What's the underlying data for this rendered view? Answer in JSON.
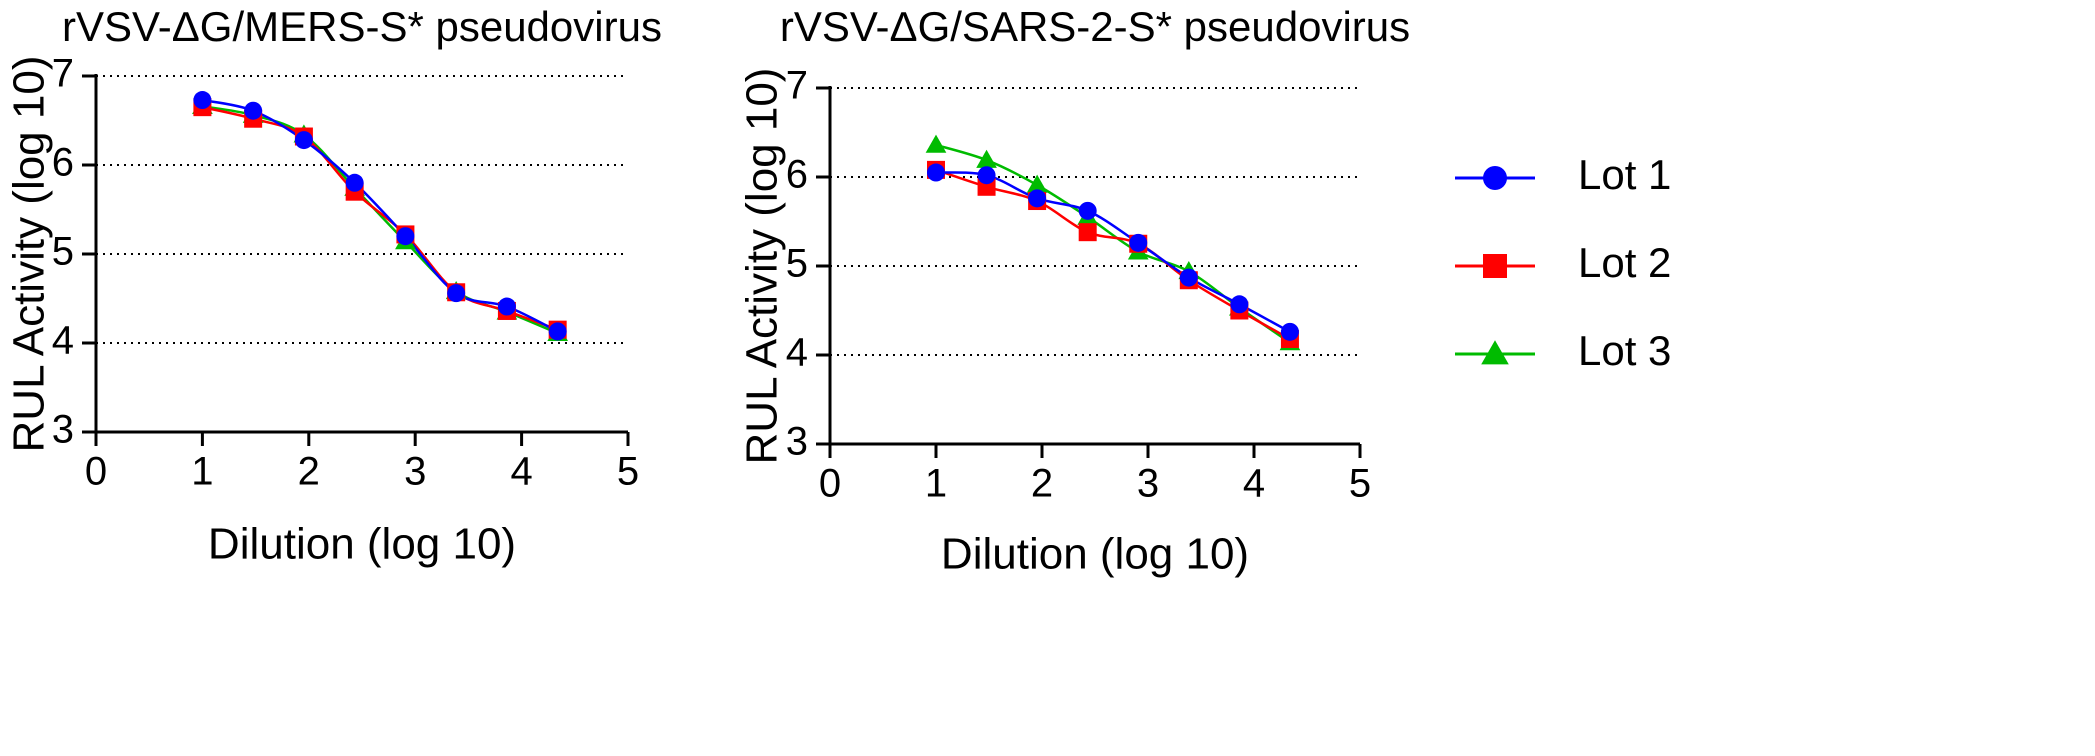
{
  "chart_data": [
    {
      "type": "line",
      "title": "rVSV-ΔG/MERS-S* pseudovirus",
      "xlabel": "Dilution (log 10)",
      "ylabel": "RUL Activity (log 10)",
      "xlim": [
        0,
        5
      ],
      "ylim": [
        3,
        7
      ],
      "xticks": [
        "0",
        "1",
        "2",
        "3",
        "4",
        "5"
      ],
      "yticks": [
        "3",
        "4",
        "5",
        "6",
        "7"
      ],
      "grid": "horizontal-dotted",
      "x": [
        1.0,
        1.477,
        1.954,
        2.431,
        2.908,
        3.385,
        3.862,
        4.339
      ],
      "series": [
        {
          "name": "Lot 1",
          "values": [
            6.73,
            6.61,
            6.28,
            5.8,
            5.2,
            4.56,
            4.41,
            4.13
          ]
        },
        {
          "name": "Lot 2",
          "values": [
            6.65,
            6.52,
            6.32,
            5.7,
            5.22,
            4.57,
            4.36,
            4.15
          ]
        },
        {
          "name": "Lot 3",
          "values": [
            6.66,
            6.56,
            6.34,
            5.74,
            5.14,
            4.58,
            4.35,
            4.11
          ]
        }
      ]
    },
    {
      "type": "line",
      "title": "rVSV-ΔG/SARS-2-S* pseudovirus",
      "xlabel": "Dilution (log 10)",
      "ylabel": "RUL Activity (log 10)",
      "xlim": [
        0,
        5
      ],
      "ylim": [
        3,
        7
      ],
      "xticks": [
        "0",
        "1",
        "2",
        "3",
        "4",
        "5"
      ],
      "yticks": [
        "3",
        "4",
        "5",
        "6",
        "7"
      ],
      "grid": "horizontal-dotted",
      "x": [
        1.0,
        1.477,
        1.954,
        2.431,
        2.908,
        3.385,
        3.862,
        4.339
      ],
      "series": [
        {
          "name": "Lot 1",
          "values": [
            6.05,
            6.02,
            5.76,
            5.62,
            5.26,
            4.87,
            4.57,
            4.26
          ]
        },
        {
          "name": "Lot 2",
          "values": [
            6.08,
            5.89,
            5.73,
            5.38,
            5.25,
            4.84,
            4.5,
            4.18
          ]
        },
        {
          "name": "Lot 3",
          "values": [
            6.36,
            6.19,
            5.91,
            5.55,
            5.16,
            4.94,
            4.53,
            4.14
          ]
        }
      ]
    }
  ],
  "legend": {
    "items": [
      {
        "label": "Lot 1",
        "color": "#0000ff",
        "marker": "circle"
      },
      {
        "label": "Lot 2",
        "color": "#ff0000",
        "marker": "square"
      },
      {
        "label": "Lot 3",
        "color": "#00bb00",
        "marker": "triangle"
      }
    ]
  }
}
